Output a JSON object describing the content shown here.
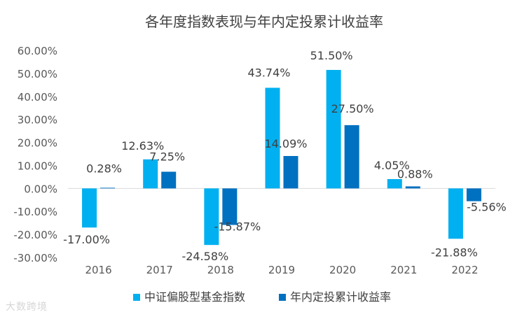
{
  "chart_data": {
    "type": "bar",
    "title": "各年度指数表现与年内定投累计收益率",
    "categories": [
      "2016",
      "2017",
      "2018",
      "2019",
      "2020",
      "2021",
      "2022"
    ],
    "series": [
      {
        "name": "中证偏股型基金指数",
        "color": "#00B0F0",
        "values": [
          -17.0,
          12.63,
          -24.58,
          43.74,
          51.5,
          4.05,
          -21.88
        ],
        "labels": [
          "-17.00%",
          "12.63%",
          "-24.58%",
          "43.74%",
          "51.50%",
          "4.05%",
          "-21.88%"
        ]
      },
      {
        "name": "年内定投累计收益率",
        "color": "#0070C0",
        "values": [
          0.28,
          7.25,
          -15.87,
          14.09,
          27.5,
          0.88,
          -5.56
        ],
        "labels": [
          "0.28%",
          "7.25%",
          "-15.87%",
          "14.09%",
          "27.50%",
          "0.88%",
          "-5.56%"
        ]
      }
    ],
    "ylim": [
      -30,
      60
    ],
    "yticks": [
      60,
      50,
      40,
      30,
      20,
      10,
      0,
      -10,
      -20,
      -30
    ],
    "ytick_labels": [
      "60.00%",
      "50.00%",
      "40.00%",
      "30.00%",
      "20.00%",
      "10.00%",
      "0.00%",
      "-10.00%",
      "-20.00%",
      "-30.00%"
    ],
    "xlabel": "",
    "ylabel": "",
    "legend_position": "bottom",
    "grid": false
  },
  "watermark": "大数跨境"
}
